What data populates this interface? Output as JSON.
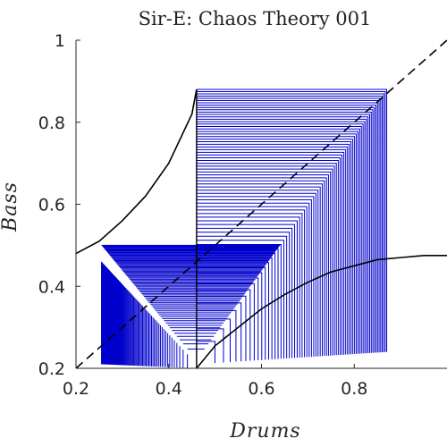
{
  "chart_data": {
    "type": "line",
    "title": "Sir-E: Chaos Theory 001",
    "xlabel": "Drums",
    "ylabel": "Bass",
    "xlim": [
      0.2,
      1.0
    ],
    "ylim": [
      0.2,
      1.0
    ],
    "xticks": [
      "0.2",
      "0.4",
      "0.6",
      "0.8"
    ],
    "yticks": [
      "0.2",
      "0.4",
      "0.6",
      "0.8",
      "1"
    ],
    "grid": false,
    "legend": "none",
    "colors": {
      "cobweb": "#0000cc",
      "curves": "#000000",
      "diagonal": "#000000",
      "axes": "#262626"
    },
    "series": [
      {
        "style": "dashed",
        "x": [
          0.2,
          1.0
        ],
        "y": [
          0.2,
          1.0
        ]
      },
      {
        "style": "solid",
        "x": [
          0.2,
          0.25,
          0.3,
          0.35,
          0.4,
          0.45,
          0.46
        ],
        "y": [
          0.48,
          0.51,
          0.56,
          0.62,
          0.7,
          0.82,
          0.88
        ]
      },
      {
        "style": "solid",
        "x": [
          0.46,
          0.5,
          0.55,
          0.6,
          0.65,
          0.7,
          0.75,
          0.8,
          0.85,
          0.9,
          0.95,
          1.0
        ],
        "y": [
          0.2,
          0.255,
          0.3,
          0.345,
          0.38,
          0.41,
          0.435,
          0.45,
          0.465,
          0.47,
          0.475,
          0.475
        ]
      },
      {
        "style": "cobweb",
        "x": [
          0.46,
          0.87
        ],
        "y": [
          0.88,
          0.2
        ]
      }
    ]
  }
}
